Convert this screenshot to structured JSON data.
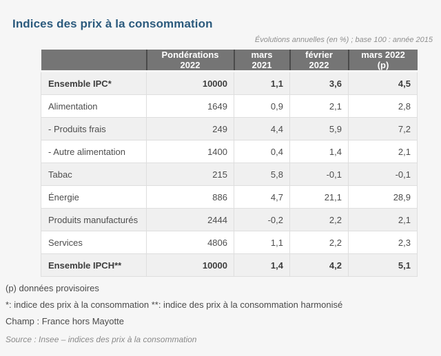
{
  "title": "Indices des prix à la consommation",
  "subtitle": "Évolutions annuelles (en %) ; base 100 : année 2015",
  "colors": {
    "title_text": "#2b5a7d",
    "header_background": "#757575",
    "header_text": "#ffffff",
    "row_stripe": "#f0f0f0",
    "page_background": "#f6f6f6",
    "body_text": "#4d4d4d"
  },
  "chart_data": {
    "type": "table",
    "title": "Indices des prix à la consommation",
    "subtitle": "Évolutions annuelles (en %) ; base 100 : année 2015",
    "columns": [
      "",
      "Pondérations 2022",
      "mars 2021",
      "février 2022",
      "mars 2022 (p)"
    ],
    "rows": [
      {
        "label": "Ensemble IPC*",
        "values": [
          "10000",
          "1,1",
          "3,6",
          "4,5"
        ],
        "bold": true
      },
      {
        "label": "Alimentation",
        "values": [
          "1649",
          "0,9",
          "2,1",
          "2,8"
        ],
        "bold": false
      },
      {
        "label": "- Produits frais",
        "values": [
          "249",
          "4,4",
          "5,9",
          "7,2"
        ],
        "bold": false
      },
      {
        "label": "- Autre alimentation",
        "values": [
          "1400",
          "0,4",
          "1,4",
          "2,1"
        ],
        "bold": false
      },
      {
        "label": "Tabac",
        "values": [
          "215",
          "5,8",
          "-0,1",
          "-0,1"
        ],
        "bold": false
      },
      {
        "label": "Énergie",
        "values": [
          "886",
          "4,7",
          "21,1",
          "28,9"
        ],
        "bold": false
      },
      {
        "label": "Produits manufacturés",
        "values": [
          "2444",
          "-0,2",
          "2,2",
          "2,1"
        ],
        "bold": false
      },
      {
        "label": "Services",
        "values": [
          "4806",
          "1,1",
          "2,2",
          "2,3"
        ],
        "bold": false
      },
      {
        "label": "Ensemble IPCH**",
        "values": [
          "10000",
          "1,4",
          "4,2",
          "5,1"
        ],
        "bold": true
      }
    ],
    "footnotes": [
      "(p) données provisoires",
      "*: indice des prix à la consommation **: indice des prix à la consommation harmonisé",
      "Champ : France hors Mayotte"
    ],
    "source": "Source : Insee – indices des prix à la consommation"
  }
}
